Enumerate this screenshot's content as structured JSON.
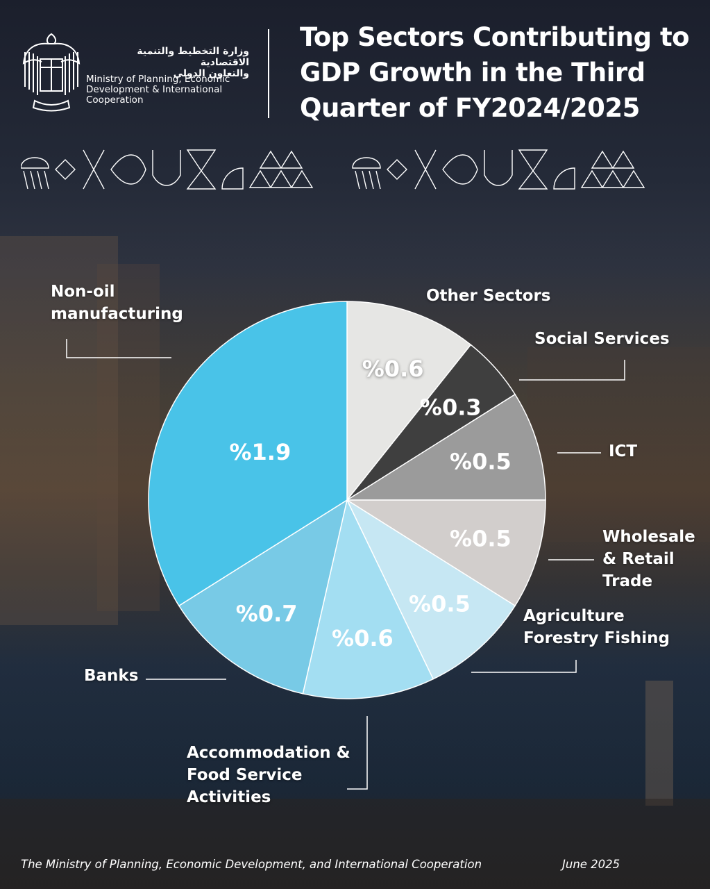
{
  "header": {
    "ministry_name_ar_line1": "وزارة التخطيط والتنمية الاقتصادية",
    "ministry_name_ar_line2": "والتعاون الدولي",
    "ministry_name_en": "Ministry of Planning, Economic Development & International Cooperation",
    "title": "Top Sectors Contributing to GDP Growth in the Third Quarter of FY2024/2025"
  },
  "chart_data": {
    "type": "pie",
    "categories": [
      "Other Sectors",
      "Social Services",
      "ICT",
      "Wholesale & Retail Trade",
      "Agriculture Forestry Fishing",
      "Accommodation & Food Service Activities",
      "Banks",
      "Non-oil manufacturing"
    ],
    "values": [
      0.6,
      0.3,
      0.5,
      0.5,
      0.5,
      0.6,
      0.7,
      1.9
    ],
    "value_labels": [
      "%0.6",
      "%0.3",
      "%0.5",
      "%0.5",
      "%0.5",
      "%0.6",
      "%0.7",
      "%1.9"
    ],
    "colors": [
      "#e6e6e4",
      "#3f3f3f",
      "#9b9b9b",
      "#d2cecc",
      "#c6e7f3",
      "#a3def2",
      "#78cae6",
      "#49c3e8"
    ],
    "start": "12 o'clock, clockwise"
  },
  "labels": {
    "other_sectors": "Other Sectors",
    "social_services": "Social Services",
    "ict": "ICT",
    "wholesale": [
      "Wholesale",
      "& Retail",
      "Trade"
    ],
    "agriculture": [
      "Agriculture",
      "Forestry Fishing"
    ],
    "accommodation": [
      "Accommodation &",
      "Food Service",
      "Activities"
    ],
    "banks": "Banks",
    "non_oil": [
      "Non-oil",
      "manufacturing"
    ]
  },
  "footer": {
    "source": "The Ministry of Planning, Economic Development, and International Cooperation",
    "date": "June 2025"
  },
  "colors": {
    "background_top": "#1b1f2c",
    "background_mid": "#5b4634",
    "background_bottom": "#203042"
  }
}
